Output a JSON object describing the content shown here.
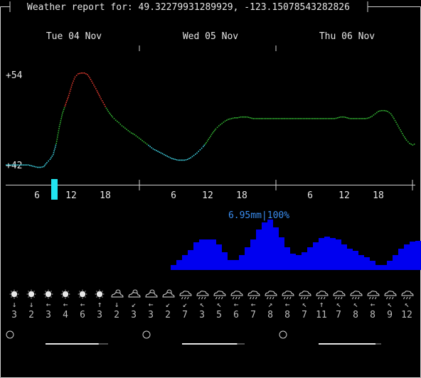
{
  "header": {
    "title": "Weather report for: 49.32279931289929, -123.15078543282826"
  },
  "days": [
    "Tue 04 Nov",
    "Wed 05 Nov",
    "Thu 06 Nov"
  ],
  "temperature": {
    "max_label": "+54",
    "min_label": "+42",
    "y_max": 54,
    "y_min": 42,
    "series": [
      42.5,
      42.5,
      42.5,
      42.5,
      42.5,
      42.5,
      42.5,
      42.5,
      42.4,
      42.3,
      42.2,
      42.2,
      42.3,
      42.8,
      43.2,
      43.8,
      45.2,
      47.3,
      49.0,
      50.1,
      51.2,
      52.5,
      53.5,
      53.9,
      54.0,
      54.0,
      53.8,
      53.2,
      52.5,
      51.8,
      51.0,
      50.3,
      49.6,
      49.0,
      48.5,
      48.1,
      47.8,
      47.4,
      47.1,
      46.8,
      46.5,
      46.3,
      46.0,
      45.7,
      45.4,
      45.1,
      44.8,
      44.5,
      44.3,
      44.1,
      43.9,
      43.7,
      43.5,
      43.3,
      43.2,
      43.1,
      43.1,
      43.1,
      43.2,
      43.4,
      43.7,
      44.0,
      44.4,
      44.8,
      45.3,
      45.9,
      46.5,
      47.0,
      47.4,
      47.7,
      48.0,
      48.2,
      48.3,
      48.4,
      48.4,
      48.5,
      48.5,
      48.5,
      48.4,
      48.3,
      48.3,
      48.3,
      48.3,
      48.3,
      48.3,
      48.3,
      48.3,
      48.3,
      48.3,
      48.3,
      48.3,
      48.3,
      48.3,
      48.3,
      48.3,
      48.3,
      48.3,
      48.3,
      48.3,
      48.3,
      48.3,
      48.3,
      48.3,
      48.3,
      48.3,
      48.3,
      48.4,
      48.5,
      48.5,
      48.4,
      48.3,
      48.3,
      48.3,
      48.3,
      48.3,
      48.3,
      48.4,
      48.6,
      48.9,
      49.2,
      49.3,
      49.3,
      49.2,
      48.9,
      48.3,
      47.6,
      46.9,
      46.2,
      45.6,
      45.2,
      45.0,
      45.2
    ],
    "colors": {
      "cold": "#3fd0e0",
      "mild": "#33b533",
      "warm": "#e03a2e"
    },
    "thresholds": {
      "cold_below": 45.0,
      "warm_above": 49.8
    }
  },
  "time_axis": {
    "hour_labels": [
      "6",
      "12",
      "18",
      "6",
      "12",
      "18",
      "6",
      "12",
      "18"
    ],
    "current_hour": 9,
    "current_marker_color": "#22e5f0"
  },
  "precipitation": {
    "label": "6.95mm|100%",
    "label_color": "#3a8df0",
    "bar_color": "#0000f0",
    "start_hour": 30,
    "levels": [
      0.1,
      0.2,
      0.3,
      0.4,
      0.55,
      0.6,
      0.6,
      0.6,
      0.5,
      0.35,
      0.2,
      0.2,
      0.3,
      0.45,
      0.6,
      0.8,
      0.95,
      1.0,
      0.85,
      0.65,
      0.45,
      0.32,
      0.3,
      0.35,
      0.45,
      0.55,
      0.64,
      0.66,
      0.64,
      0.6,
      0.5,
      0.42,
      0.38,
      0.3,
      0.25,
      0.18,
      0.1,
      0.1,
      0.18,
      0.3,
      0.42,
      0.5,
      0.56,
      0.58,
      0.55
    ]
  },
  "forecast": [
    {
      "icon": "sun-icon",
      "wind": "↓",
      "speed": "3"
    },
    {
      "icon": "sun-icon",
      "wind": "↓",
      "speed": "2"
    },
    {
      "icon": "sun-icon",
      "wind": "←",
      "speed": "3"
    },
    {
      "icon": "sun-icon",
      "wind": "←",
      "speed": "4"
    },
    {
      "icon": "sun-icon",
      "wind": "←",
      "speed": "6"
    },
    {
      "icon": "sun-icon",
      "wind": "↑",
      "speed": "3"
    },
    {
      "icon": "partly-cloudy-icon",
      "wind": "↓",
      "speed": "2"
    },
    {
      "icon": "partly-cloudy-icon",
      "wind": "↙",
      "speed": "3"
    },
    {
      "icon": "partly-cloudy-icon",
      "wind": "←",
      "speed": "3"
    },
    {
      "icon": "partly-cloudy-icon",
      "wind": "↙",
      "speed": "2"
    },
    {
      "icon": "rain-cloud-icon",
      "wind": "↙",
      "speed": "7"
    },
    {
      "icon": "rain-cloud-icon",
      "wind": "↖",
      "speed": "3"
    },
    {
      "icon": "rain-cloud-icon",
      "wind": "↖",
      "speed": "5"
    },
    {
      "icon": "rain-cloud-icon",
      "wind": "←",
      "speed": "6"
    },
    {
      "icon": "rain-cloud-icon",
      "wind": "←",
      "speed": "7"
    },
    {
      "icon": "rain-cloud-icon",
      "wind": "↗",
      "speed": "8"
    },
    {
      "icon": "rain-cloud-icon",
      "wind": "←",
      "speed": "8"
    },
    {
      "icon": "rain-cloud-icon",
      "wind": "↖",
      "speed": "7"
    },
    {
      "icon": "rain-cloud-icon",
      "wind": "↑",
      "speed": "11"
    },
    {
      "icon": "rain-cloud-icon",
      "wind": "↖",
      "speed": "7"
    },
    {
      "icon": "rain-cloud-icon",
      "wind": "↖",
      "speed": "8"
    },
    {
      "icon": "rain-cloud-icon",
      "wind": "←",
      "speed": "8"
    },
    {
      "icon": "rain-cloud-icon",
      "wind": "↖",
      "speed": "9"
    },
    {
      "icon": "rain-cloud-icon",
      "wind": "↖",
      "speed": "12"
    }
  ],
  "moon": [
    {
      "icon": "moon-icon",
      "phase": 0.5
    },
    {
      "icon": "moon-icon",
      "phase": 0.55
    },
    {
      "icon": "moon-icon",
      "phase": 0.6
    }
  ]
}
